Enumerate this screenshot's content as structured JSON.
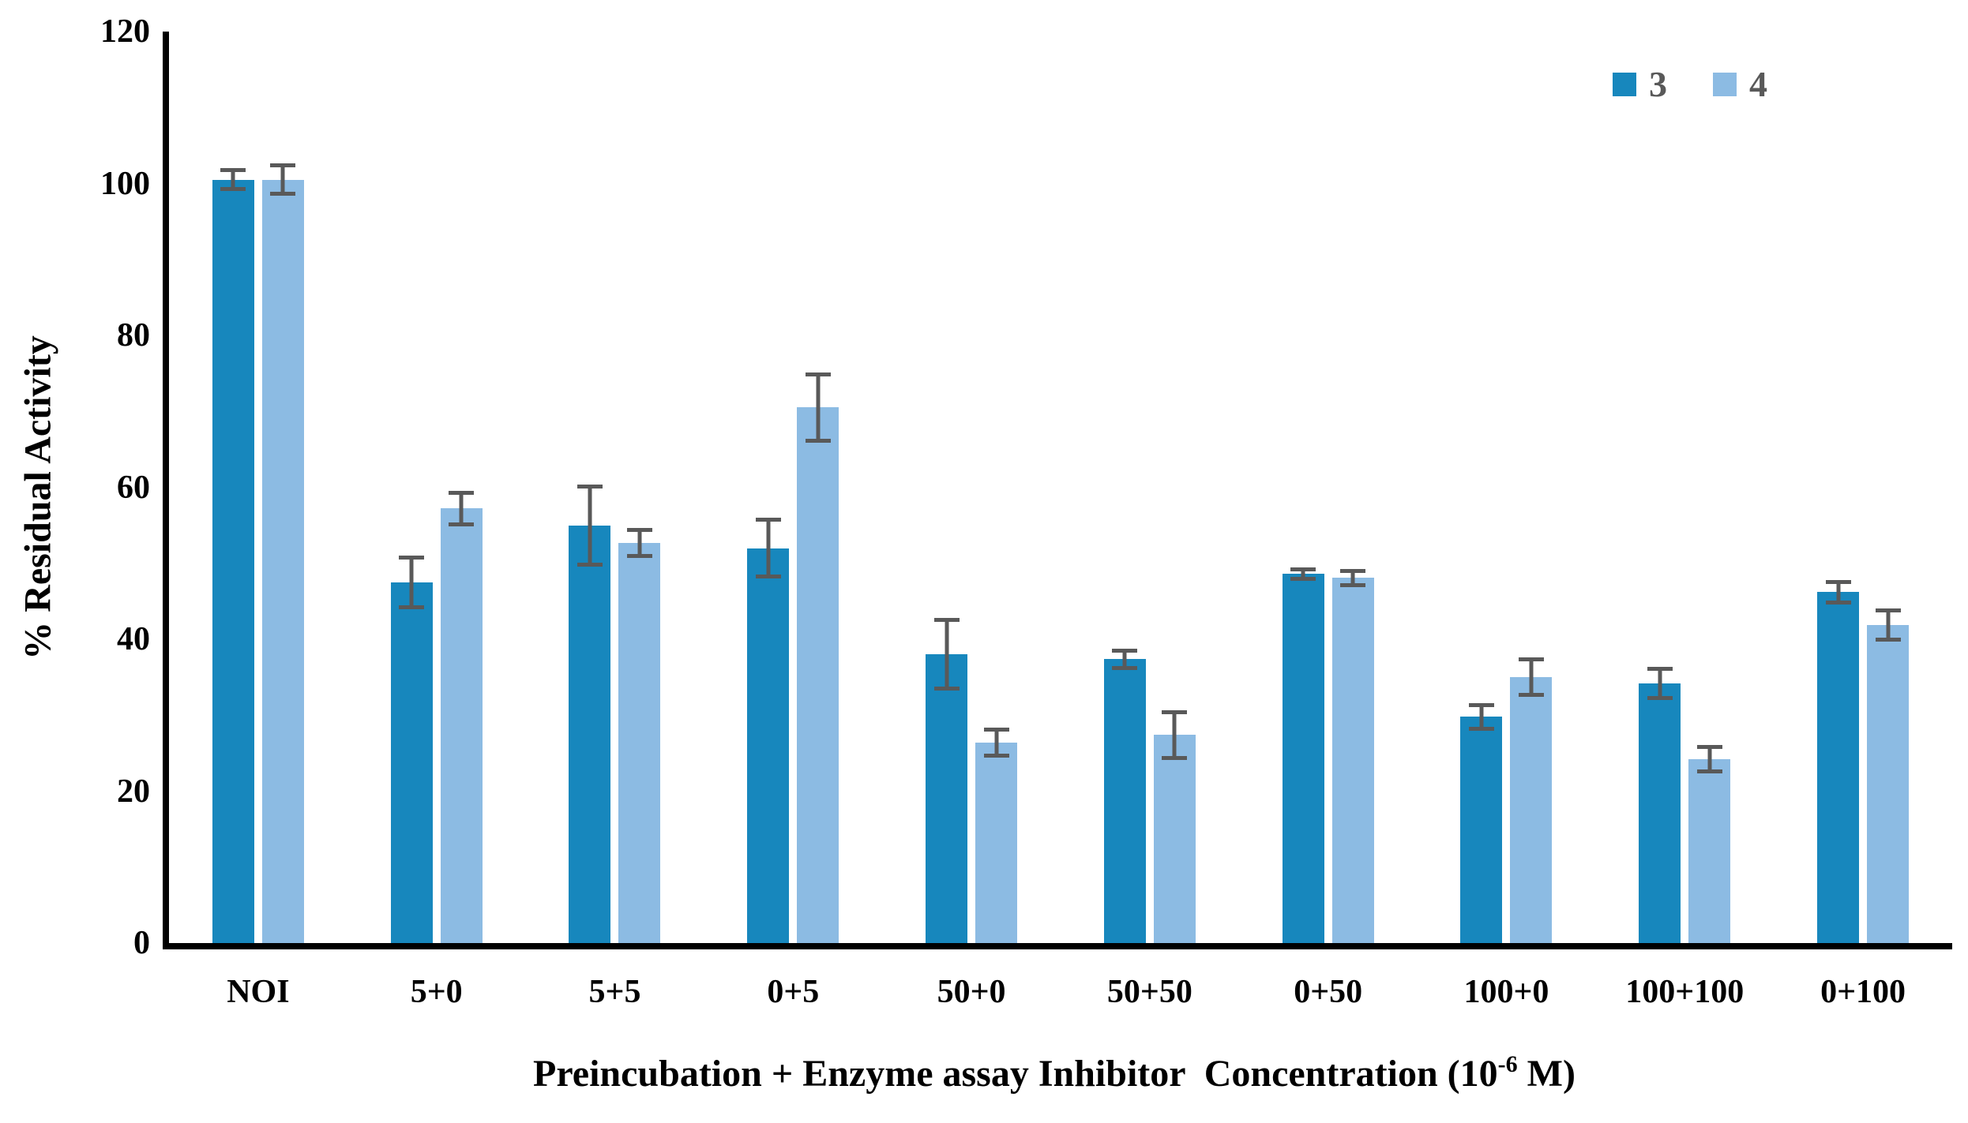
{
  "chart_data": {
    "type": "bar",
    "title": "",
    "categories": [
      "NOI",
      "5+0",
      "5+5",
      "0+5",
      "50+0",
      "50+50",
      "0+50",
      "100+0",
      "100+100",
      "0+100"
    ],
    "series": [
      {
        "name": "3",
        "color": "#1787BD",
        "values": [
          100.5,
          47.5,
          55.0,
          52.0,
          38.0,
          37.4,
          48.6,
          29.8,
          34.2,
          46.2
        ],
        "errors": [
          1.5,
          3.5,
          5.4,
          4.0,
          4.8,
          1.4,
          0.9,
          1.8,
          2.2,
          1.6
        ]
      },
      {
        "name": "4",
        "color": "#8CBBE3",
        "values": [
          100.5,
          57.2,
          52.7,
          70.5,
          26.4,
          27.4,
          48.1,
          35.0,
          24.2,
          41.9
        ],
        "errors": [
          2.1,
          2.3,
          2.0,
          4.6,
          2.0,
          3.3,
          1.2,
          2.6,
          1.9,
          2.2
        ]
      }
    ],
    "xlabel_prefix": "Preincubation + Enzyme assay Inhibitor  Concentration (10",
    "xlabel_sup": "-6",
    "xlabel_suffix": " M)",
    "ylabel": "% Residual Activity",
    "y_ticks": [
      0,
      20,
      40,
      60,
      80,
      100,
      120
    ],
    "ylim": [
      0,
      120
    ],
    "grid": "off",
    "legend_position": "top-right",
    "error_bar_color": "#595959",
    "axis_color": "#000000"
  }
}
